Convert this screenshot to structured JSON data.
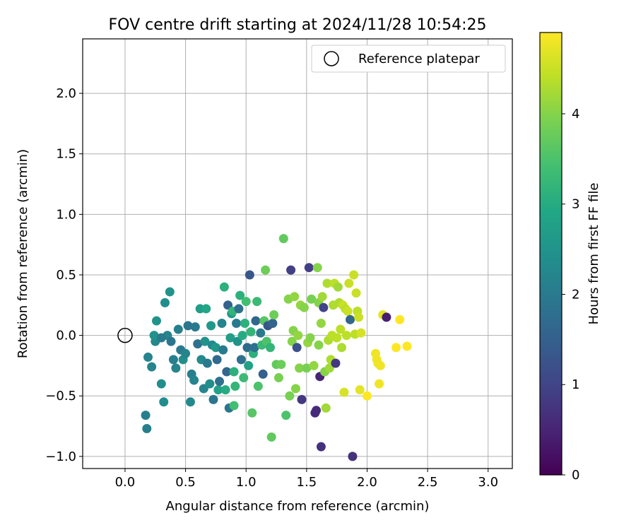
{
  "chart_data": {
    "type": "scatter",
    "title": "FOV centre drift starting at 2024/11/28 10:54:25",
    "xlabel": "Angular distance from reference (arcmin)",
    "ylabel": "Rotation from reference (arcmin)",
    "xlim": [
      -0.35,
      3.2
    ],
    "ylim": [
      -1.1,
      2.45
    ],
    "xticks": [
      0.0,
      0.5,
      1.0,
      1.5,
      2.0,
      2.5,
      3.0
    ],
    "xtick_labels": [
      "0.0",
      "0.5",
      "1.0",
      "1.5",
      "2.0",
      "2.5",
      "3.0"
    ],
    "yticks": [
      -1.0,
      -0.5,
      0.0,
      0.5,
      1.0,
      1.5,
      2.0
    ],
    "ytick_labels": [
      "−1.0",
      "−0.5",
      "0.0",
      "0.5",
      "1.0",
      "1.5",
      "2.0"
    ],
    "grid": true,
    "legend": {
      "placement": "top-right",
      "entries": [
        {
          "label": "Reference platepar",
          "marker": "open-circle"
        }
      ]
    },
    "reference_point": {
      "x": 0.0,
      "y": 0.0
    },
    "colorbar": {
      "label": "Hours from first FF file",
      "colormap": "viridis",
      "range": [
        0,
        4.9
      ],
      "ticks": [
        0,
        1,
        2,
        3,
        4
      ],
      "tick_labels": [
        "0",
        "1",
        "2",
        "3",
        "4"
      ]
    },
    "points": [
      [
        0.17,
        -0.66,
        2.1
      ],
      [
        0.18,
        -0.77,
        2.1
      ],
      [
        0.19,
        -0.18,
        2.2
      ],
      [
        0.22,
        -0.26,
        2.2
      ],
      [
        0.25,
        -0.05,
        2.3
      ],
      [
        0.24,
        0.0,
        2.5
      ],
      [
        0.26,
        0.12,
        2.5
      ],
      [
        0.3,
        -0.4,
        2.4
      ],
      [
        0.32,
        -0.55,
        2.4
      ],
      [
        0.33,
        0.27,
        2.4
      ],
      [
        0.37,
        0.36,
        2.5
      ],
      [
        0.35,
        0.0,
        2.2
      ],
      [
        0.3,
        -0.02,
        2.0
      ],
      [
        0.38,
        -0.05,
        1.9
      ],
      [
        0.4,
        -0.2,
        2.1
      ],
      [
        0.42,
        -0.27,
        2.2
      ],
      [
        0.44,
        0.05,
        2.1
      ],
      [
        0.46,
        -0.12,
        2.0
      ],
      [
        0.48,
        -0.2,
        2.4
      ],
      [
        0.5,
        -0.15,
        2.2
      ],
      [
        0.52,
        0.08,
        1.9
      ],
      [
        0.54,
        -0.55,
        2.3
      ],
      [
        0.55,
        -0.32,
        2.1
      ],
      [
        0.57,
        -0.37,
        2.2
      ],
      [
        0.58,
        0.07,
        2.0
      ],
      [
        0.6,
        -0.07,
        1.8
      ],
      [
        0.62,
        0.22,
        2.7
      ],
      [
        0.63,
        -0.2,
        2.3
      ],
      [
        0.65,
        -0.44,
        2.2
      ],
      [
        0.66,
        -0.05,
        2.5
      ],
      [
        0.67,
        0.22,
        2.9
      ],
      [
        0.68,
        -0.23,
        2.0
      ],
      [
        0.7,
        -0.4,
        2.4
      ],
      [
        0.71,
        0.08,
        2.6
      ],
      [
        0.72,
        -0.08,
        2.3
      ],
      [
        0.73,
        -0.53,
        1.9
      ],
      [
        0.75,
        -0.1,
        2.6
      ],
      [
        0.76,
        -0.2,
        1.7
      ],
      [
        0.77,
        -0.45,
        2.8
      ],
      [
        0.78,
        -0.38,
        1.8
      ],
      [
        0.8,
        0.1,
        2.2
      ],
      [
        0.81,
        -0.12,
        2.0
      ],
      [
        0.82,
        0.4,
        3.1
      ],
      [
        0.83,
        -0.45,
        3.0
      ],
      [
        0.84,
        -0.3,
        1.6
      ],
      [
        0.85,
        0.25,
        1.5
      ],
      [
        0.86,
        -0.6,
        1.9
      ],
      [
        0.87,
        -0.02,
        2.7
      ],
      [
        0.88,
        0.18,
        2.6
      ],
      [
        0.89,
        0.2,
        3.2
      ],
      [
        0.9,
        -0.3,
        3.1
      ],
      [
        0.9,
        -0.58,
        3.4
      ],
      [
        0.91,
        -0.42,
        3.2
      ],
      [
        0.92,
        0.1,
        2.0
      ],
      [
        0.93,
        -0.05,
        2.5
      ],
      [
        0.94,
        0.22,
        1.8
      ],
      [
        0.95,
        0.33,
        3.1
      ],
      [
        0.96,
        -0.2,
        1.8
      ],
      [
        0.97,
        0.0,
        3.0
      ],
      [
        0.98,
        -0.35,
        3.3
      ],
      [
        0.99,
        0.1,
        3.1
      ],
      [
        1.0,
        0.28,
        3.4
      ],
      [
        1.01,
        -0.1,
        1.7
      ],
      [
        1.02,
        -0.25,
        2.8
      ],
      [
        1.03,
        0.5,
        1.3
      ],
      [
        1.04,
        0.03,
        3.2
      ],
      [
        1.05,
        -0.64,
        3.6
      ],
      [
        1.06,
        -0.15,
        3.1
      ],
      [
        1.07,
        -0.1,
        1.8
      ],
      [
        1.08,
        0.12,
        1.6
      ],
      [
        1.09,
        0.28,
        3.3
      ],
      [
        1.1,
        -0.42,
        3.5
      ],
      [
        1.12,
        0.02,
        2.0
      ],
      [
        1.13,
        -0.08,
        3.3
      ],
      [
        1.14,
        -0.32,
        1.5
      ],
      [
        1.15,
        0.12,
        3.6
      ],
      [
        1.16,
        0.54,
        3.8
      ],
      [
        1.17,
        -0.05,
        3.5
      ],
      [
        1.18,
        0.08,
        1.3
      ],
      [
        1.2,
        -0.1,
        3.2
      ],
      [
        1.21,
        -0.84,
        3.7
      ],
      [
        1.22,
        0.1,
        1.6
      ],
      [
        1.23,
        0.17,
        3.8
      ],
      [
        1.25,
        -0.24,
        3.7
      ],
      [
        1.27,
        -0.35,
        3.9
      ],
      [
        1.29,
        -0.24,
        3.8
      ],
      [
        1.31,
        0.8,
        3.7
      ],
      [
        1.33,
        -0.66,
        3.5
      ],
      [
        1.35,
        0.3,
        4.0
      ],
      [
        1.36,
        -0.5,
        3.9
      ],
      [
        1.37,
        0.54,
        0.9
      ],
      [
        1.38,
        -0.05,
        4.0
      ],
      [
        1.39,
        0.04,
        4.0
      ],
      [
        1.4,
        0.32,
        4.1
      ],
      [
        1.41,
        -0.44,
        4.0
      ],
      [
        1.42,
        -0.1,
        1.2
      ],
      [
        1.43,
        0.0,
        4.1
      ],
      [
        1.44,
        -0.27,
        4.0
      ],
      [
        1.45,
        0.25,
        4.1
      ],
      [
        1.46,
        -0.53,
        0.8
      ],
      [
        1.48,
        0.23,
        4.0
      ],
      [
        1.5,
        -0.27,
        3.9
      ],
      [
        1.51,
        -0.06,
        4.1
      ],
      [
        1.52,
        0.56,
        0.9
      ],
      [
        1.53,
        -0.02,
        4.0
      ],
      [
        1.54,
        0.3,
        3.9
      ],
      [
        1.56,
        -0.25,
        4.1
      ],
      [
        1.57,
        -0.64,
        0.6
      ],
      [
        1.58,
        -0.62,
        0.6
      ],
      [
        1.59,
        0.56,
        4.0
      ],
      [
        1.6,
        -0.08,
        4.0
      ],
      [
        1.6,
        0.27,
        4.0
      ],
      [
        1.61,
        -0.34,
        0.5
      ],
      [
        1.62,
        0.1,
        4.1
      ],
      [
        1.62,
        -0.92,
        0.7
      ],
      [
        1.63,
        0.32,
        4.2
      ],
      [
        1.64,
        0.23,
        1.0
      ],
      [
        1.65,
        -0.3,
        4.0
      ],
      [
        1.66,
        -0.6,
        4.2
      ],
      [
        1.67,
        0.43,
        4.3
      ],
      [
        1.68,
        -0.04,
        4.3
      ],
      [
        1.69,
        -0.27,
        4.2
      ],
      [
        1.7,
        -0.2,
        4.3
      ],
      [
        1.71,
        0.0,
        4.4
      ],
      [
        1.72,
        0.25,
        4.3
      ],
      [
        1.73,
        0.43,
        4.4
      ],
      [
        1.74,
        -0.23,
        0.8
      ],
      [
        1.75,
        -0.02,
        4.4
      ],
      [
        1.76,
        0.4,
        4.2
      ],
      [
        1.77,
        0.27,
        4.3
      ],
      [
        1.78,
        0.05,
        4.4
      ],
      [
        1.79,
        -0.1,
        4.3
      ],
      [
        1.8,
        0.25,
        4.5
      ],
      [
        1.81,
        -0.47,
        4.6
      ],
      [
        1.82,
        0.22,
        4.4
      ],
      [
        1.83,
        0.0,
        4.4
      ],
      [
        1.84,
        0.2,
        4.5
      ],
      [
        1.85,
        0.43,
        4.5
      ],
      [
        1.86,
        0.13,
        1.6
      ],
      [
        1.88,
        -1.0,
        0.7
      ],
      [
        1.89,
        0.5,
        4.5
      ],
      [
        1.9,
        0.01,
        4.4
      ],
      [
        1.91,
        0.35,
        4.5
      ],
      [
        1.92,
        0.2,
        4.4
      ],
      [
        1.93,
        0.15,
        4.5
      ],
      [
        1.94,
        -0.45,
        4.7
      ],
      [
        1.95,
        0.02,
        4.6
      ],
      [
        2.0,
        -0.5,
        4.9
      ],
      [
        2.07,
        -0.15,
        4.8
      ],
      [
        2.08,
        -0.2,
        4.8
      ],
      [
        2.09,
        -0.23,
        4.8
      ],
      [
        2.1,
        -0.4,
        4.8
      ],
      [
        2.11,
        -0.25,
        4.8
      ],
      [
        2.13,
        0.17,
        4.7
      ],
      [
        2.16,
        0.15,
        0.4
      ],
      [
        2.24,
        -0.1,
        4.9
      ],
      [
        2.27,
        0.13,
        4.9
      ],
      [
        2.33,
        -0.09,
        4.9
      ]
    ]
  }
}
